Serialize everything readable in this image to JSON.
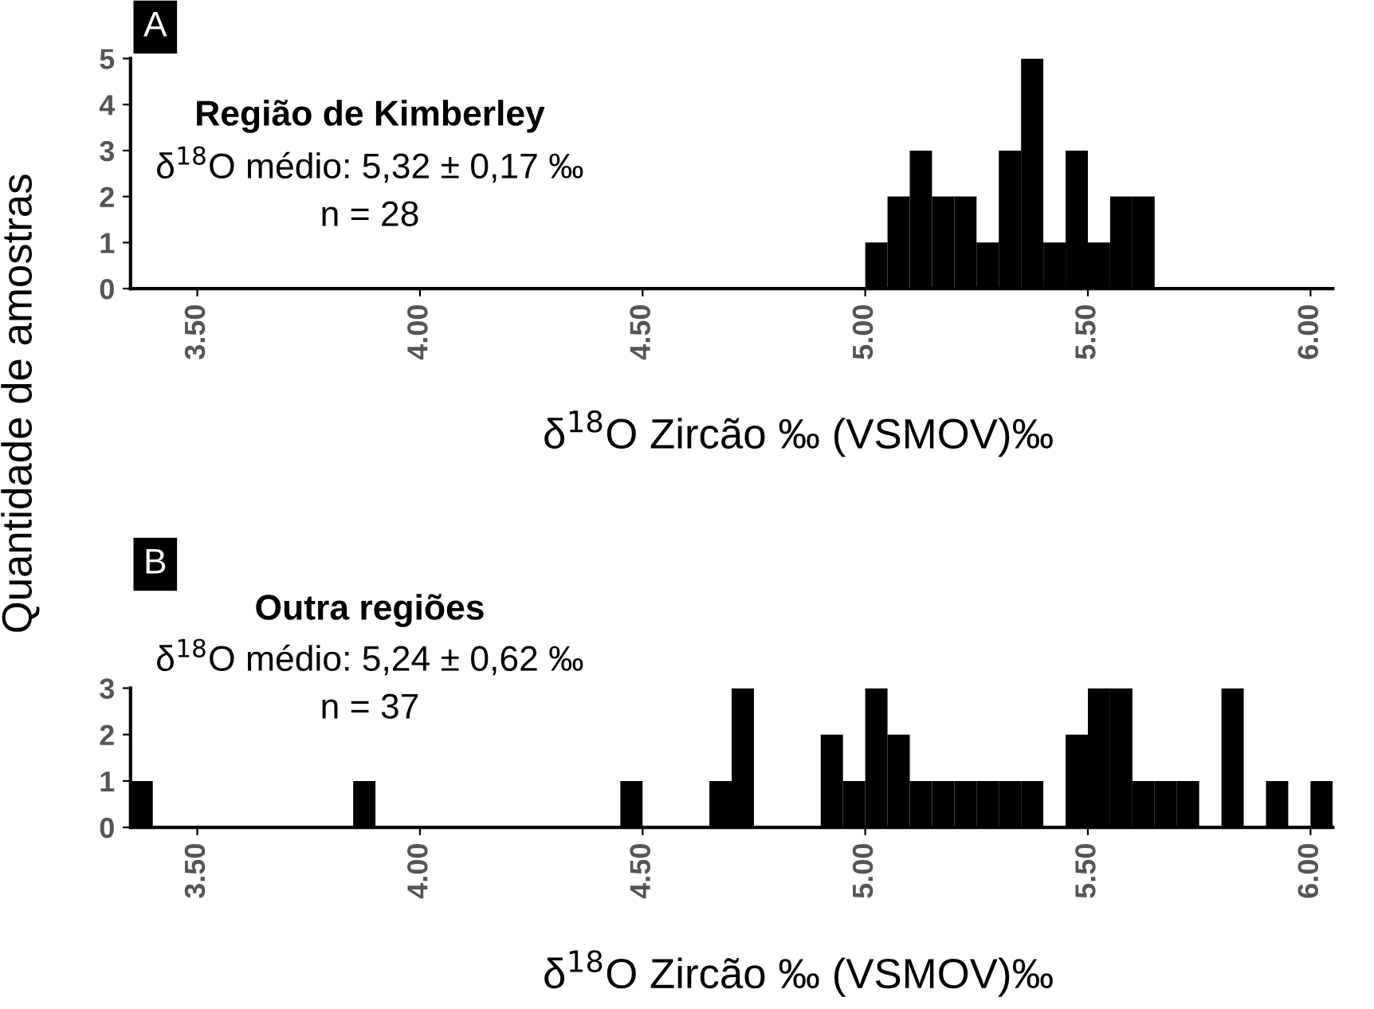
{
  "chart_data": [
    {
      "type": "histogram",
      "title": "Região de Kimberley",
      "ylabel": "Quantidade de amostras",
      "xlabel": "δ$^{18}$O Zircão ‰ (VSMOV)‰",
      "annotations": [
        "A",
        "δ$^{18}$O médio: 5,32 ± 0,17 ‰",
        "n = 28"
      ],
      "bins": [
        5.0,
        5.05,
        5.1,
        5.15,
        5.2,
        5.25,
        5.3,
        5.35,
        5.4,
        5.45,
        5.5,
        5.55,
        5.6,
        5.65
      ],
      "values": [
        1,
        2,
        3,
        2,
        2,
        1,
        3,
        5,
        1,
        3,
        1,
        2,
        2
      ],
      "color": "#000000",
      "xlim": [
        3.35,
        6.05
      ],
      "ylim": [
        0,
        5
      ],
      "yticks": [
        0,
        1,
        2,
        3,
        4,
        5
      ],
      "xticks": [
        {
          "value": 3.5,
          "label": "3.50"
        },
        {
          "value": 4.0,
          "label": "4.00"
        },
        {
          "value": 4.5,
          "label": "4.50"
        },
        {
          "value": 5.0,
          "label": "5.00"
        },
        {
          "value": 5.5,
          "label": "5.50"
        },
        {
          "value": 6.0,
          "label": "6.00"
        }
      ],
      "grid": false
    },
    {
      "type": "histogram",
      "title": "Outra regiões",
      "xlabel": "δ$^{18}$O Zircão ‰ (VSMOV)‰",
      "annotations": [
        "B",
        "δ$^{18}$O médio: 5,24 ± 0,62 ‰",
        "n = 37"
      ],
      "bins": [
        3.35,
        3.4,
        3.45,
        3.5,
        3.55,
        3.6,
        3.65,
        3.7,
        3.75,
        3.8,
        3.85,
        3.9,
        3.95,
        4.0,
        4.05,
        4.1,
        4.15,
        4.2,
        4.25,
        4.3,
        4.35,
        4.4,
        4.45,
        4.5,
        4.55,
        4.6,
        4.65,
        4.7,
        4.75,
        4.8,
        4.85,
        4.9,
        4.95,
        5.0,
        5.05,
        5.1,
        5.15,
        5.2,
        5.25,
        5.3,
        5.35,
        5.4,
        5.45,
        5.5,
        5.55,
        5.6,
        5.65,
        5.7,
        5.75,
        5.8,
        5.85,
        5.9,
        5.95,
        6.0,
        6.05
      ],
      "values": [
        1,
        0,
        0,
        0,
        0,
        0,
        0,
        0,
        0,
        0,
        1,
        0,
        0,
        0,
        0,
        0,
        0,
        0,
        0,
        0,
        0,
        0,
        1,
        0,
        0,
        0,
        1,
        3,
        0,
        0,
        0,
        2,
        1,
        3,
        2,
        1,
        1,
        1,
        1,
        1,
        1,
        0,
        2,
        3,
        3,
        1,
        1,
        1,
        0,
        3,
        0,
        1,
        0,
        1
      ],
      "color": "#000000",
      "xlim": [
        3.35,
        6.05
      ],
      "ylim": [
        0,
        3
      ],
      "yticks": [
        0,
        1,
        2,
        3
      ],
      "xticks": [
        {
          "value": 3.5,
          "label": "3.50"
        },
        {
          "value": 4.0,
          "label": "4.00"
        },
        {
          "value": 4.5,
          "label": "4.50"
        },
        {
          "value": 5.0,
          "label": "5.00"
        },
        {
          "value": 5.5,
          "label": "5.50"
        },
        {
          "value": 6.0,
          "label": "6.00"
        }
      ],
      "grid": false
    }
  ]
}
